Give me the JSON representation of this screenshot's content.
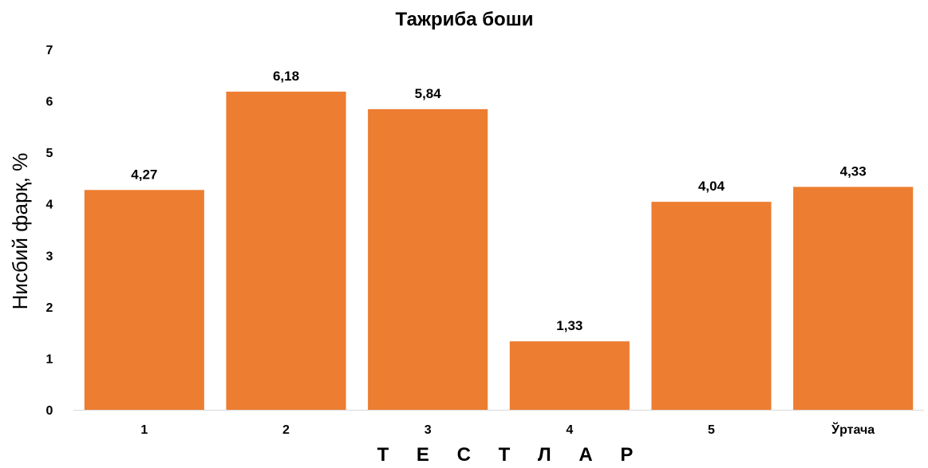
{
  "chart_data": {
    "type": "bar",
    "title": "Тажриба боши",
    "xlabel": "Т Е С Т Л А Р",
    "ylabel": "Нисбий фарқ, %",
    "categories": [
      "1",
      "2",
      "3",
      "4",
      "5",
      "Ўртача"
    ],
    "values": [
      4.27,
      6.18,
      5.84,
      1.33,
      4.04,
      4.33
    ],
    "data_labels": [
      "4,27",
      "6,18",
      "5,84",
      "1,33",
      "4,04",
      "4,33"
    ],
    "ylim": [
      0,
      7
    ],
    "yticks": [
      "0",
      "1",
      "2",
      "3",
      "4",
      "5",
      "6",
      "7"
    ],
    "grid": false,
    "legend": "none",
    "bar_color": "#ED7D31"
  }
}
